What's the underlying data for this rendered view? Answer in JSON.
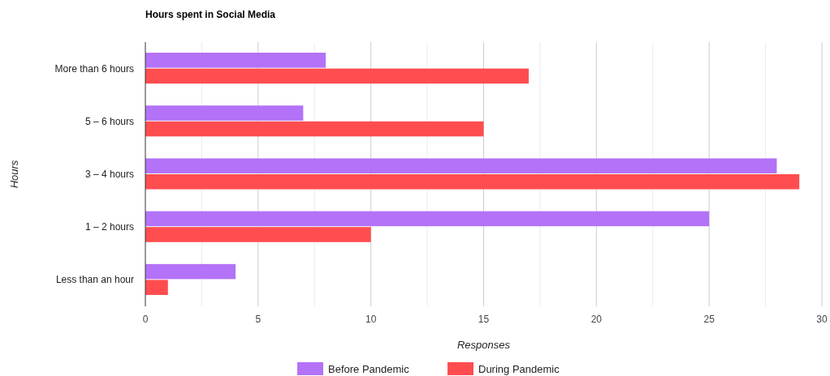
{
  "chart_data": {
    "type": "bar",
    "orientation": "horizontal",
    "title": "Hours spent in Social Media",
    "xlabel": "Responses",
    "ylabel": "Hours",
    "categories": [
      "More than 6 hours",
      "5 – 6 hours",
      "3 – 4 hours",
      "1 – 2 hours",
      "Less than an hour"
    ],
    "series": [
      {
        "name": "Before Pandemic",
        "color": "#b372f8",
        "values": [
          8,
          7,
          28,
          25,
          4
        ]
      },
      {
        "name": "During Pandemic",
        "color": "#ff4d4f",
        "values": [
          17,
          15,
          29,
          10,
          1
        ]
      }
    ],
    "xlim": [
      0,
      30
    ],
    "xticks": [
      0,
      {
        "value": 2.5,
        "label": null
      },
      5,
      {
        "value": 7.5,
        "label": null
      },
      10,
      {
        "value": 12.5,
        "label": null
      },
      15,
      {
        "value": 17.5,
        "label": null
      },
      20,
      {
        "value": 22.5,
        "label": null
      },
      25,
      {
        "value": 27.5,
        "label": null
      },
      30
    ],
    "grid": "x",
    "legend": "bottom"
  }
}
